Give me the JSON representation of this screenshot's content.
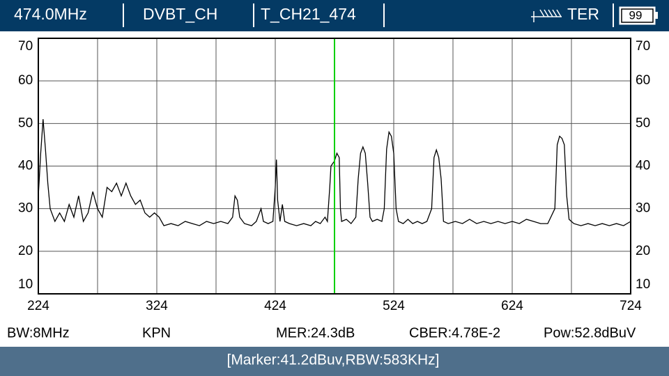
{
  "header": {
    "frequency": "474.0MHz",
    "mode": "DVBT_CH",
    "channel": "T_CH21_474",
    "band": "TER",
    "battery": "99"
  },
  "chart_data": {
    "type": "line",
    "color": "#000000",
    "marker_color": "#00d000",
    "marker_x": 474,
    "xlim": [
      224,
      724
    ],
    "ylim": [
      10,
      70
    ],
    "xticks": [
      224,
      324,
      424,
      524,
      624,
      724
    ],
    "xgrid": [
      274,
      374,
      474,
      574,
      674
    ],
    "yticks": [
      10,
      20,
      30,
      40,
      50,
      60,
      70
    ],
    "grid": true,
    "x": [
      224,
      226,
      228,
      230,
      232,
      234,
      238,
      242,
      246,
      250,
      254,
      258,
      262,
      266,
      270,
      274,
      278,
      282,
      286,
      290,
      294,
      298,
      302,
      306,
      310,
      314,
      318,
      322,
      326,
      330,
      336,
      342,
      348,
      354,
      360,
      366,
      372,
      378,
      384,
      388,
      390,
      392,
      394,
      398,
      404,
      408,
      412,
      414,
      418,
      422,
      424,
      425,
      426,
      428,
      430,
      432,
      436,
      442,
      448,
      454,
      458,
      462,
      466,
      468,
      470,
      471,
      474,
      476,
      478,
      479,
      480,
      484,
      488,
      492,
      494,
      496,
      498,
      500,
      502,
      504,
      506,
      510,
      514,
      516,
      518,
      520,
      522,
      524,
      526,
      528,
      532,
      536,
      540,
      544,
      548,
      552,
      556,
      558,
      560,
      562,
      564,
      566,
      570,
      576,
      582,
      588,
      594,
      600,
      606,
      612,
      618,
      624,
      630,
      636,
      642,
      648,
      654,
      660,
      662,
      664,
      666,
      668,
      670,
      672,
      676,
      682,
      688,
      694,
      700,
      706,
      712,
      718,
      724
    ],
    "values": [
      33,
      43,
      51,
      44,
      36,
      30,
      27,
      29,
      27,
      31,
      28,
      33,
      27,
      29,
      34,
      30,
      28,
      35,
      34,
      36,
      33,
      36,
      33,
      31,
      32,
      29,
      28,
      29,
      28,
      26,
      26.5,
      26,
      27,
      26.5,
      26,
      27,
      26.5,
      27,
      26.5,
      28,
      33,
      32,
      28,
      26.5,
      26,
      27,
      30,
      27,
      26.5,
      27,
      35,
      41.5,
      32,
      27,
      31,
      27,
      26.5,
      26,
      26.5,
      26,
      27,
      26.5,
      28,
      27,
      35,
      40,
      41.2,
      43,
      42,
      30,
      27,
      27.5,
      26.5,
      28,
      37,
      43,
      44.5,
      43,
      36,
      28,
      27,
      27.5,
      27,
      30,
      44,
      48,
      47,
      43,
      30,
      27,
      26.5,
      27.5,
      26.5,
      27,
      26.5,
      27,
      30,
      42,
      43.8,
      42,
      37,
      27,
      26.5,
      27,
      26.5,
      27.5,
      26.5,
      27,
      26.5,
      27,
      26.5,
      27,
      26.5,
      27.5,
      27,
      26.5,
      26.5,
      30,
      45,
      47,
      46.5,
      45,
      33,
      27.5,
      26.5,
      26,
      26.5,
      26,
      26.5,
      26,
      26.5,
      26,
      27
    ]
  },
  "status": {
    "bw": "BW:8MHz",
    "operator": "KPN",
    "mer": "MER:24.3dB",
    "cber": "CBER:4.78E-2",
    "power": "Pow:52.8dBuV"
  },
  "footer": {
    "marker": "[Marker:41.2dBuv,RBW:583KHz]"
  }
}
